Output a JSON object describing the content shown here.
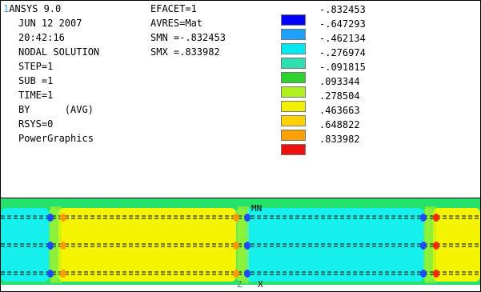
{
  "window": {
    "number": "1",
    "program": "ANSYS 9.0"
  },
  "info_left": [
    "JUN 12 2007",
    "20:42:16",
    "NODAL SOLUTION",
    "STEP=1",
    "SUB =1",
    "TIME=1",
    "BY      (AVG)",
    "RSYS=0",
    "PowerGraphics"
  ],
  "info_mid": [
    "EFACET=1",
    "AVRES=Mat",
    "SMN =-.832453",
    "SMX =.833982"
  ],
  "legend": {
    "values": [
      "-.832453",
      "-.647293",
      "-.462134",
      "-.276974",
      "-.091815",
      ".093344",
      ".278504",
      ".463663",
      ".648822",
      ".833982"
    ],
    "colors": [
      "#0000ff",
      "#1ea0ff",
      "#00e8f0",
      "#2ee0b0",
      "#2ed22e",
      "#b0f020",
      "#f0f000",
      "#ffd200",
      "#ffa000",
      "#ee1010"
    ]
  },
  "plot": {
    "min_marker": "MN",
    "axis_z": "Z",
    "axis_x": "X",
    "colors": {
      "outer_green": "#25e26a",
      "cyan_band": "#15f0ec",
      "yellow_band": "#f4f400",
      "yellowgreen": "#b6f21a",
      "lightgreen": "#5ef060",
      "orange": "#ff9a00",
      "blue": "#1b4dff",
      "red": "#ff2a00"
    }
  }
}
